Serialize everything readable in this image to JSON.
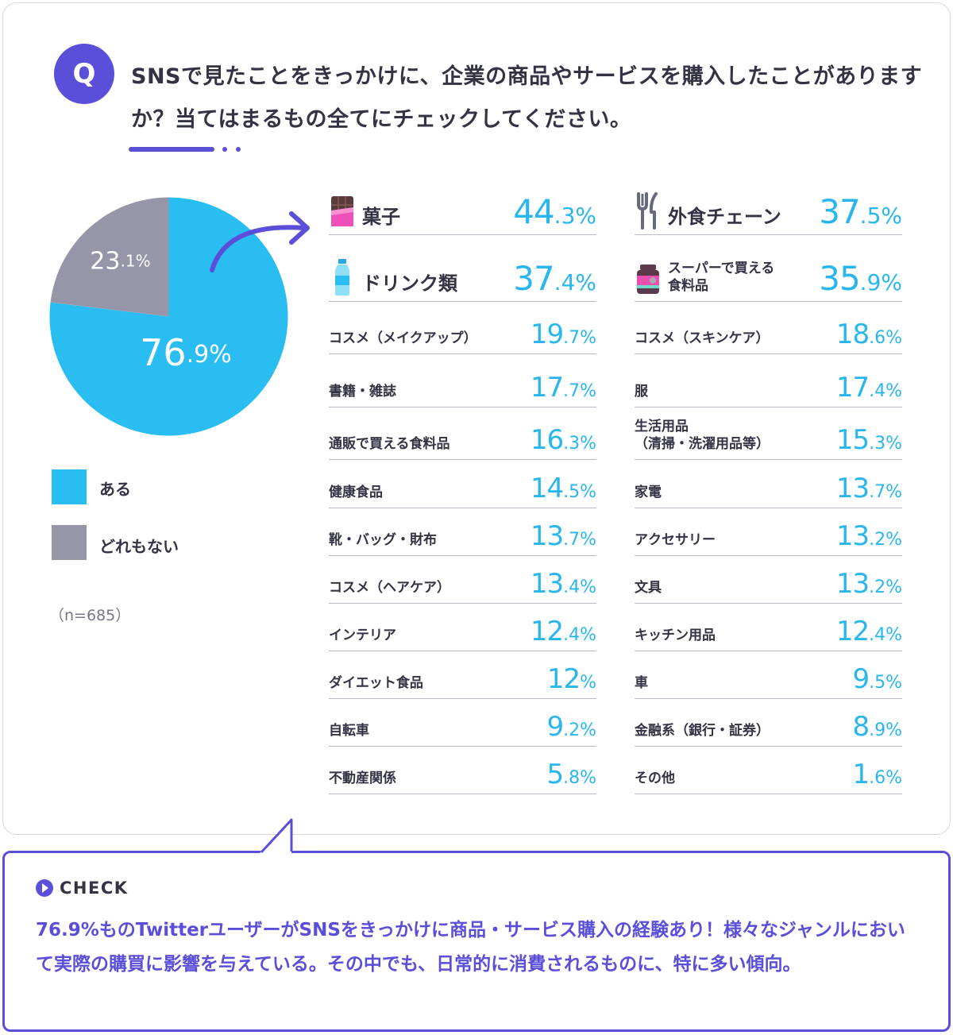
{
  "colors": {
    "accent": "#5b4fd9",
    "yes": "#29bdf2",
    "none": "#9796a9",
    "value_text": "#29b6ee"
  },
  "question": {
    "badge": "Q",
    "text": "SNSで見たことをきっかけに、企業の商品やサービスを購入したことがありますか？当てはまるもの全てにチェックしてください。"
  },
  "chart_data": [
    {
      "type": "pie",
      "slices": [
        {
          "label": "ある",
          "value": 76.9,
          "display": "76.9%",
          "color": "#29bdf2"
        },
        {
          "label": "どれもない",
          "value": 23.1,
          "display": "23.1%",
          "color": "#9796a9"
        }
      ],
      "legend_position": "bottom",
      "note": "（n=685）"
    },
    {
      "type": "table",
      "columns": [
        [
          {
            "label": "菓子",
            "value": 44.3,
            "icon": "chocolate-icon",
            "featured": true
          },
          {
            "label": "ドリンク類",
            "value": 37.4,
            "icon": "bottle-icon",
            "featured": true
          },
          {
            "label": "コスメ（メイクアップ）",
            "value": 19.7
          },
          {
            "label": "書籍・雑誌",
            "value": 17.7
          },
          {
            "label": "通販で買える食料品",
            "value": 16.3
          },
          {
            "label": "健康食品",
            "value": 14.5
          },
          {
            "label": "靴・バッグ・財布",
            "value": 13.7
          },
          {
            "label": "コスメ（ヘアケア）",
            "value": 13.4
          },
          {
            "label": "インテリア",
            "value": 12.4
          },
          {
            "label": "ダイエット食品",
            "value": 12
          },
          {
            "label": "自転車",
            "value": 9.2
          },
          {
            "label": "不動産関係",
            "value": 5.8
          }
        ],
        [
          {
            "label": "外食チェーン",
            "value": 37.5,
            "icon": "fork-knife-icon",
            "featured": true
          },
          {
            "label": "スーパーで買える\n食料品",
            "value": 35.9,
            "icon": "jar-icon",
            "featured": true
          },
          {
            "label": "コスメ（スキンケア）",
            "value": 18.6
          },
          {
            "label": "服",
            "value": 17.4
          },
          {
            "label": "生活用品\n（清掃・洗濯用品等）",
            "value": 15.3
          },
          {
            "label": "家電",
            "value": 13.7
          },
          {
            "label": "アクセサリー",
            "value": 13.2
          },
          {
            "label": "文具",
            "value": 13.2
          },
          {
            "label": "キッチン用品",
            "value": 12.4
          },
          {
            "label": "車",
            "value": 9.5
          },
          {
            "label": "金融系（銀行・証券）",
            "value": 8.9
          },
          {
            "label": "その他",
            "value": 1.6
          }
        ]
      ]
    }
  ],
  "check": {
    "heading": "CHECK",
    "text": "76.9%ものTwitterユーザーがSNSをきっかけに商品・サービス購入の経験あり！様々なジャンルにおいて実際の購買に影響を与えている。その中でも、日常的に消費されるものに、特に多い傾向。"
  }
}
